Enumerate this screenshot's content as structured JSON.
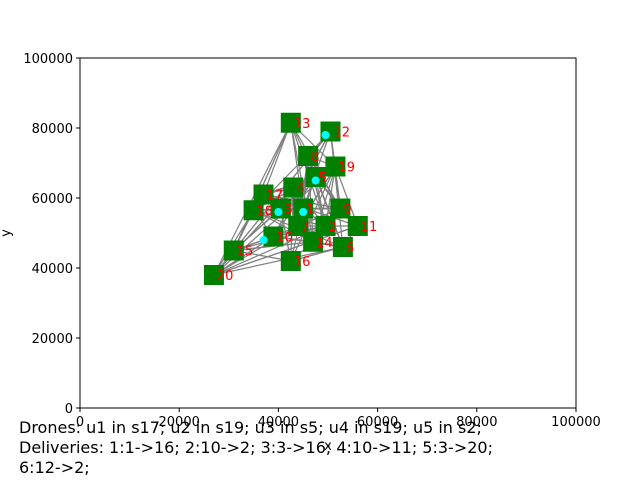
{
  "chart_data": {
    "type": "scatter",
    "xlabel": "x",
    "ylabel": "y",
    "xlim": [
      0,
      100000
    ],
    "ylim": [
      0,
      100000
    ],
    "xticks": [
      "0",
      "20000",
      "40000",
      "60000",
      "80000",
      "100000"
    ],
    "yticks": [
      "0",
      "20000",
      "40000",
      "60000",
      "80000",
      "100000"
    ],
    "xtick_values": [
      0,
      20000,
      40000,
      60000,
      80000,
      100000
    ],
    "ytick_values": [
      0,
      20000,
      40000,
      60000,
      80000,
      100000
    ],
    "stations": [
      {
        "label": "1",
        "x": 45000,
        "y": 57000
      },
      {
        "label": "2",
        "x": 49500,
        "y": 52000
      },
      {
        "label": "3",
        "x": 40500,
        "y": 57000
      },
      {
        "label": "4",
        "x": 43000,
        "y": 63000
      },
      {
        "label": "5",
        "x": 47500,
        "y": 66000
      },
      {
        "label": "6",
        "x": 53000,
        "y": 46000
      },
      {
        "label": "7",
        "x": 44000,
        "y": 52000
      },
      {
        "label": "8",
        "x": 46000,
        "y": 72000
      },
      {
        "label": "9",
        "x": 52500,
        "y": 57000
      },
      {
        "label": "10",
        "x": 39000,
        "y": 49000
      },
      {
        "label": "11",
        "x": 56000,
        "y": 52000
      },
      {
        "label": "12",
        "x": 50500,
        "y": 79000
      },
      {
        "label": "13",
        "x": 42500,
        "y": 81500
      },
      {
        "label": "14",
        "x": 47000,
        "y": 47500
      },
      {
        "label": "15",
        "x": 31000,
        "y": 45000
      },
      {
        "label": "16",
        "x": 42500,
        "y": 42000
      },
      {
        "label": "17",
        "x": 37000,
        "y": 61000
      },
      {
        "label": "18",
        "x": 35000,
        "y": 56500
      },
      {
        "label": "19",
        "x": 51500,
        "y": 69000
      },
      {
        "label": "20",
        "x": 27000,
        "y": 38000
      }
    ],
    "drones": [
      {
        "label": "u1",
        "x": 37000,
        "y": 48000
      },
      {
        "label": "u2",
        "x": 40000,
        "y": 56000
      },
      {
        "label": "u3",
        "x": 45000,
        "y": 56000
      },
      {
        "label": "u4",
        "x": 49500,
        "y": 78000
      },
      {
        "label": "u5",
        "x": 47500,
        "y": 65000
      }
    ],
    "marker_color": "#008000",
    "label_color": "#ff0000",
    "drone_color": "#00ffff",
    "route_color": "#808080"
  },
  "caption": {
    "line1": "Drones: u1 in s17; u2 in s19; u3 in s5; u4 in s19; u5 in s2;",
    "line2": "Deliveries: 1:1->16; 2:10->2; 3:3->16; 4:10->11; 5:3->20;",
    "line3": "6:12->2;"
  }
}
